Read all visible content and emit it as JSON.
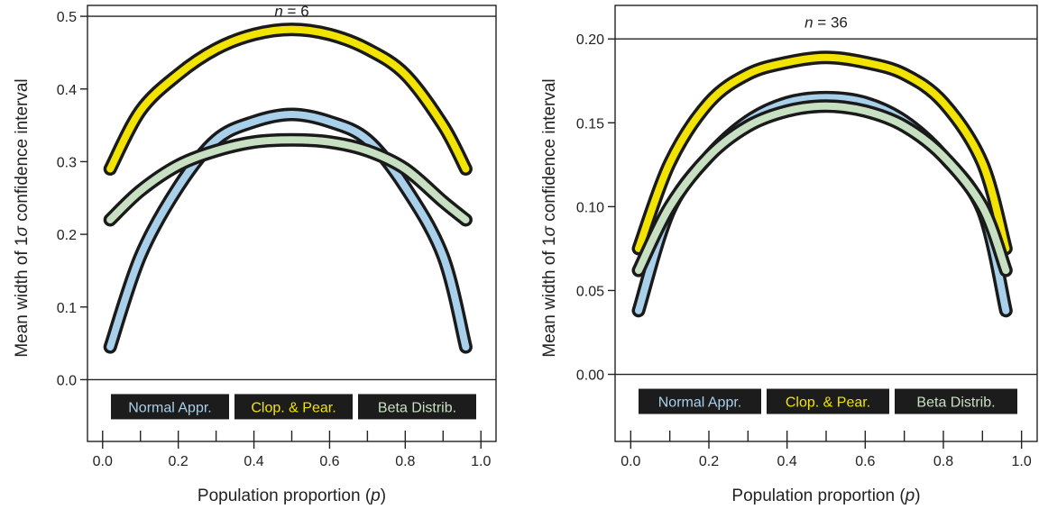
{
  "chart_data": [
    {
      "type": "line",
      "title": "n = 6",
      "title_prefix": "n",
      "title_value": "6",
      "xlabel_text": "Population proportion",
      "xlabel_symbol": "p",
      "ylabel_pre": "Mean width of 1",
      "ylabel_symbol": "σ",
      "ylabel_post": " confidence interval",
      "xlim": [
        -0.04,
        1.04
      ],
      "ylim": [
        -0.085,
        0.515
      ],
      "x_ticks": [
        0.0,
        0.2,
        0.4,
        0.6,
        0.8,
        1.0
      ],
      "x_tick_labels": [
        "0.0",
        "0.2",
        "0.4",
        "0.6",
        "0.8",
        "1.0"
      ],
      "x_minor_ticks": [
        0.1,
        0.3,
        0.5,
        0.7,
        0.9
      ],
      "y_ticks": [
        0.0,
        0.1,
        0.2,
        0.3,
        0.4,
        0.5
      ],
      "y_tick_labels": [
        "0.0",
        "0.1",
        "0.2",
        "0.3",
        "0.4",
        "0.5"
      ],
      "hlines": [
        0.0,
        0.5
      ],
      "legend": [
        {
          "label": "Normal Appr.",
          "color": "#a8d0ea"
        },
        {
          "label": "Clop. & Pear.",
          "color": "#f2e400"
        },
        {
          "label": "Beta Distrib.",
          "color": "#c8e0c2"
        }
      ],
      "series": [
        {
          "name": "Normal Appr.",
          "color": "#a8d0ea",
          "x": [
            0.02,
            0.1,
            0.2,
            0.3,
            0.4,
            0.5,
            0.6,
            0.7,
            0.8,
            0.9,
            0.96
          ],
          "y": [
            0.045,
            0.17,
            0.265,
            0.33,
            0.355,
            0.365,
            0.355,
            0.33,
            0.265,
            0.17,
            0.045
          ]
        },
        {
          "name": "Clop. & Pear.",
          "color": "#f2e400",
          "x": [
            0.02,
            0.1,
            0.2,
            0.3,
            0.4,
            0.5,
            0.6,
            0.7,
            0.8,
            0.9,
            0.96
          ],
          "y": [
            0.29,
            0.37,
            0.42,
            0.455,
            0.475,
            0.482,
            0.475,
            0.455,
            0.42,
            0.35,
            0.29
          ]
        },
        {
          "name": "Beta Distrib.",
          "color": "#c8e0c2",
          "x": [
            0.02,
            0.1,
            0.2,
            0.3,
            0.4,
            0.5,
            0.6,
            0.7,
            0.8,
            0.9,
            0.96
          ],
          "y": [
            0.22,
            0.26,
            0.295,
            0.315,
            0.327,
            0.33,
            0.327,
            0.315,
            0.29,
            0.245,
            0.22
          ]
        }
      ]
    },
    {
      "type": "line",
      "title": "n = 36",
      "title_prefix": "n",
      "title_value": "36",
      "xlabel_text": "Population proportion",
      "xlabel_symbol": "p",
      "ylabel_pre": "Mean width of 1",
      "ylabel_symbol": "σ",
      "ylabel_post": " confidence interval",
      "xlim": [
        -0.04,
        1.04
      ],
      "ylim": [
        -0.04,
        0.22
      ],
      "x_ticks": [
        0.0,
        0.2,
        0.4,
        0.6,
        0.8,
        1.0
      ],
      "x_tick_labels": [
        "0.0",
        "0.2",
        "0.4",
        "0.6",
        "0.8",
        "1.0"
      ],
      "x_minor_ticks": [
        0.1,
        0.3,
        0.5,
        0.7,
        0.9
      ],
      "y_ticks": [
        0.0,
        0.05,
        0.1,
        0.15,
        0.2
      ],
      "y_tick_labels": [
        "0.00",
        "0.05",
        "0.10",
        "0.15",
        "0.20"
      ],
      "hlines": [
        0.0,
        0.2
      ],
      "legend": [
        {
          "label": "Normal Appr.",
          "color": "#a8d0ea"
        },
        {
          "label": "Clop. & Pear.",
          "color": "#f2e400"
        },
        {
          "label": "Beta Distrib.",
          "color": "#c8e0c2"
        }
      ],
      "series": [
        {
          "name": "Normal Appr.",
          "color": "#a8d0ea",
          "x": [
            0.02,
            0.1,
            0.2,
            0.3,
            0.4,
            0.5,
            0.6,
            0.7,
            0.8,
            0.9,
            0.96
          ],
          "y": [
            0.038,
            0.098,
            0.13,
            0.151,
            0.162,
            0.165,
            0.162,
            0.151,
            0.13,
            0.098,
            0.038
          ]
        },
        {
          "name": "Clop. & Pear.",
          "color": "#f2e400",
          "x": [
            0.02,
            0.1,
            0.2,
            0.3,
            0.4,
            0.5,
            0.6,
            0.7,
            0.8,
            0.9,
            0.96
          ],
          "y": [
            0.075,
            0.126,
            0.162,
            0.179,
            0.186,
            0.189,
            0.186,
            0.179,
            0.162,
            0.126,
            0.075
          ]
        },
        {
          "name": "Beta Distrib.",
          "color": "#c8e0c2",
          "x": [
            0.02,
            0.1,
            0.2,
            0.3,
            0.4,
            0.5,
            0.6,
            0.7,
            0.8,
            0.9,
            0.96
          ],
          "y": [
            0.062,
            0.1,
            0.13,
            0.148,
            0.157,
            0.16,
            0.157,
            0.148,
            0.13,
            0.1,
            0.062
          ]
        }
      ]
    }
  ]
}
